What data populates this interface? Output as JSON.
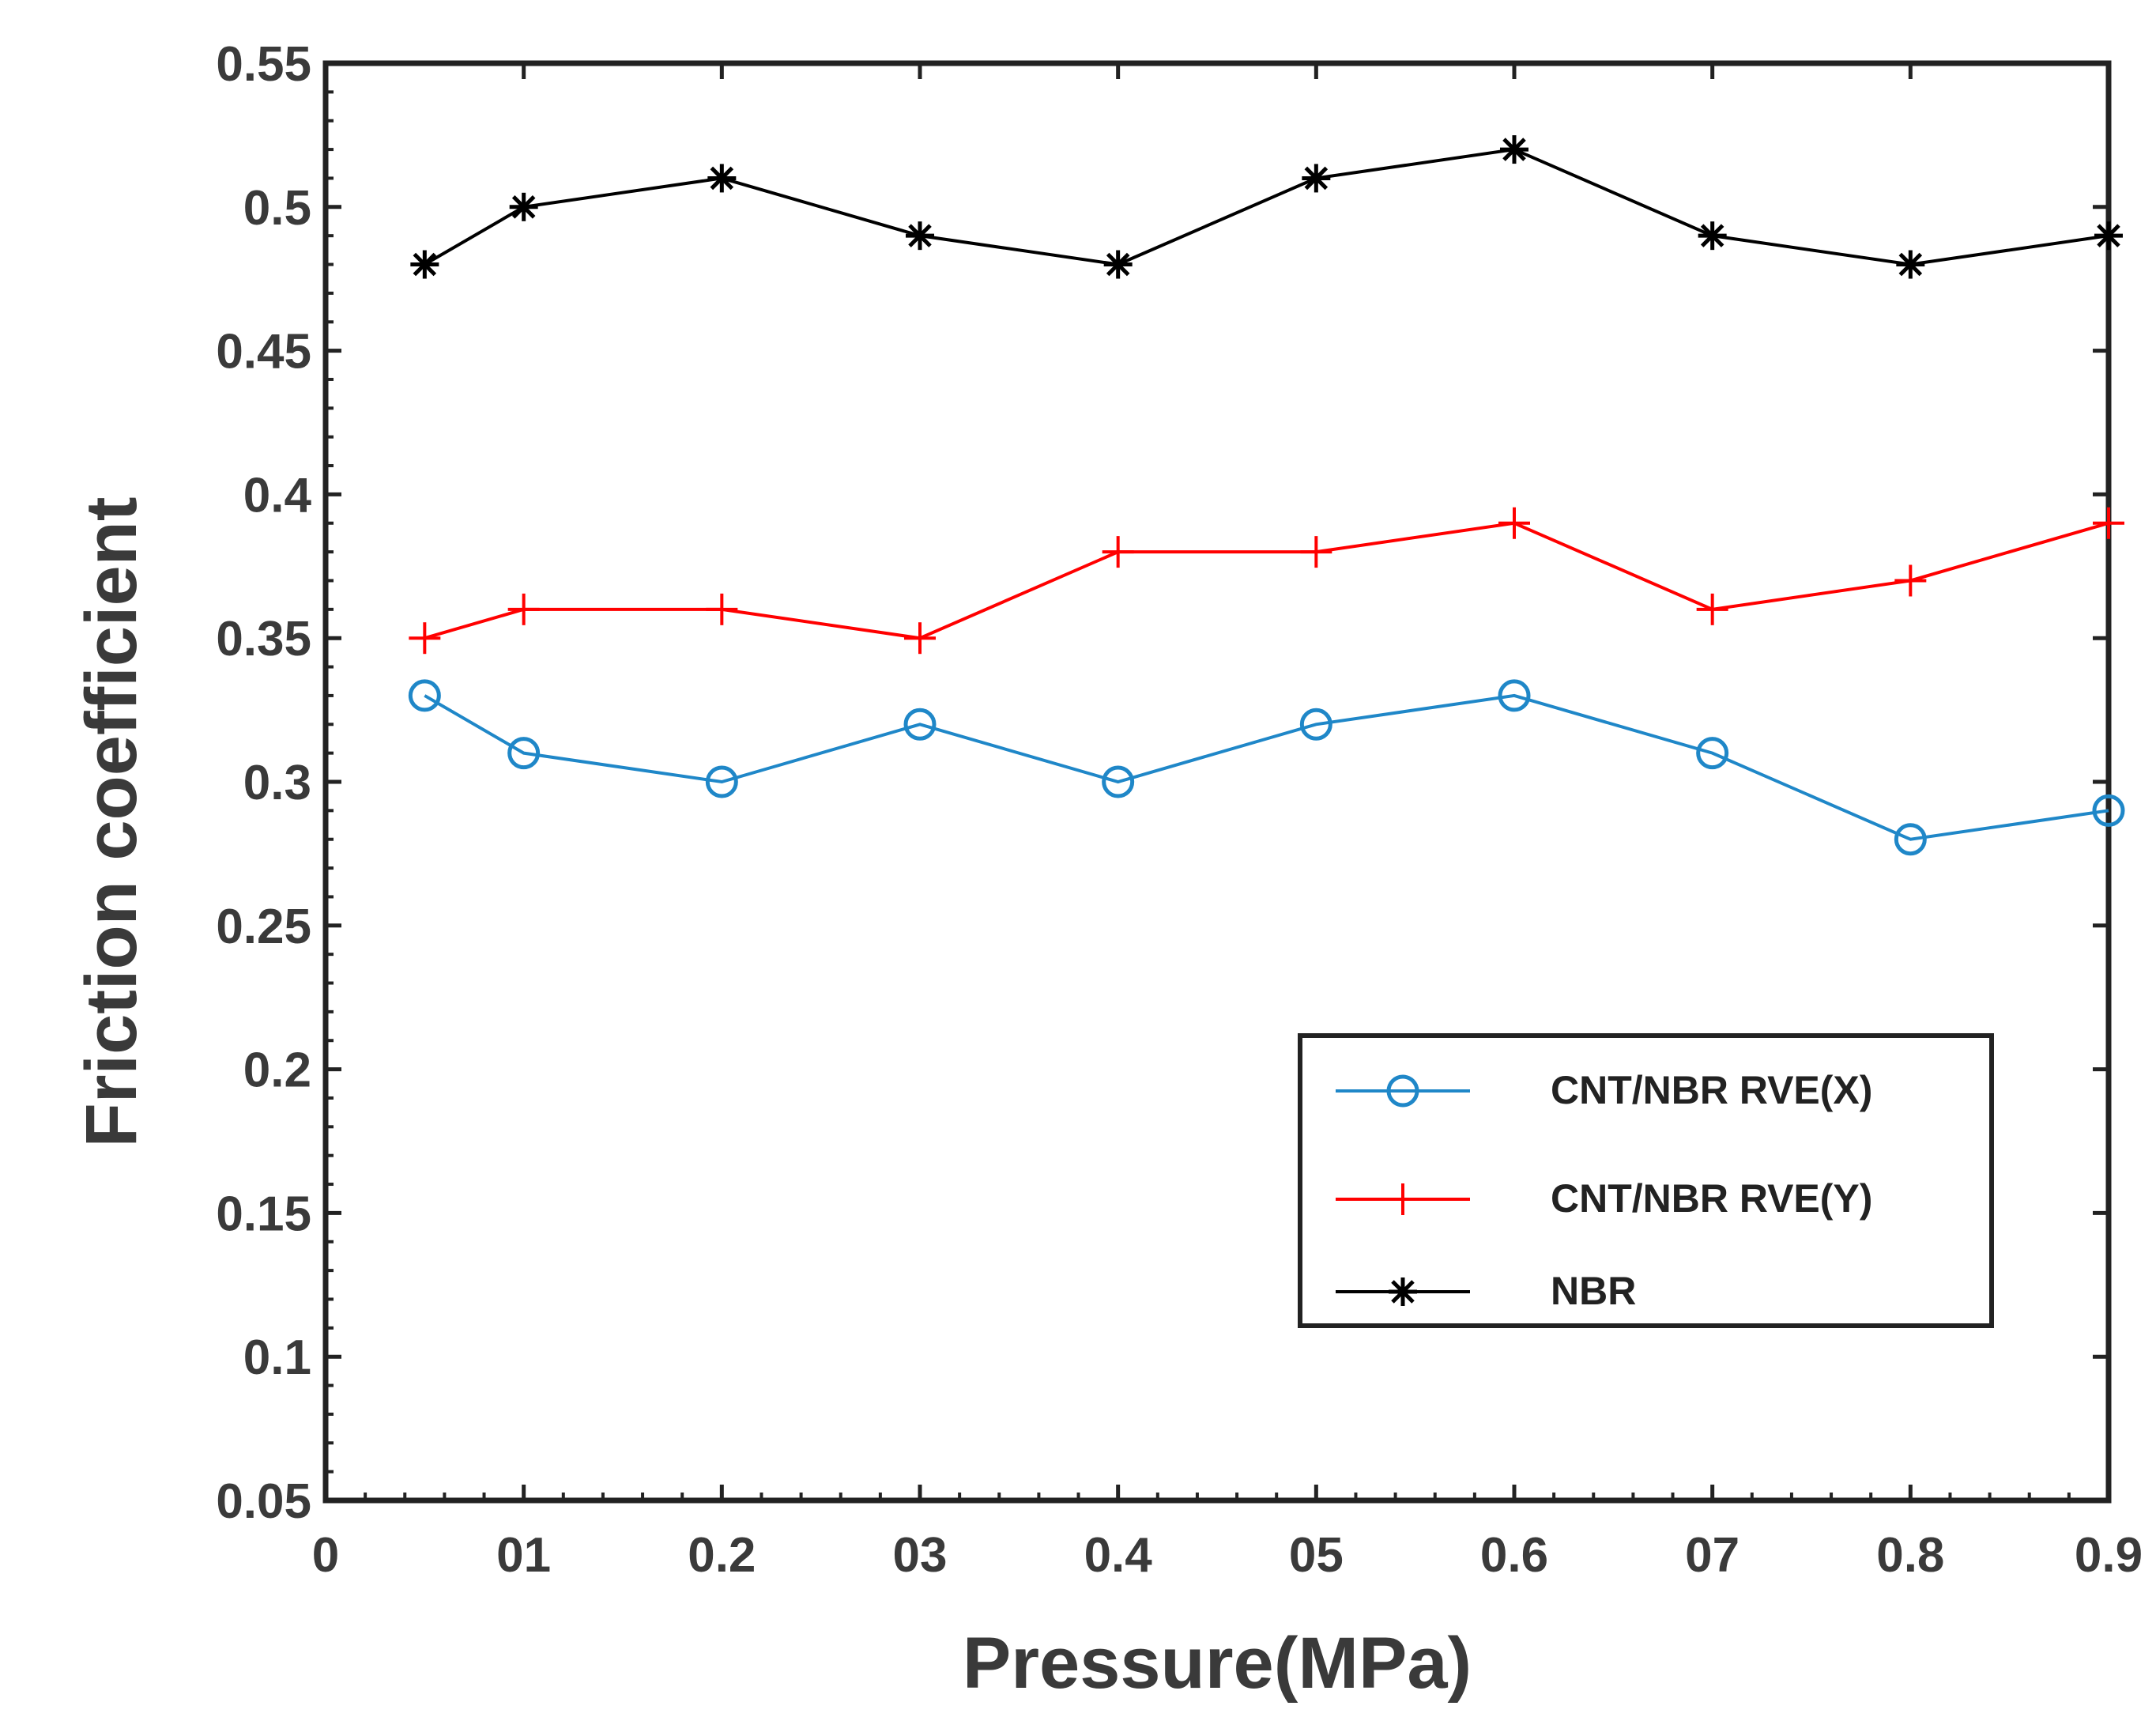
{
  "chart_data": {
    "type": "line",
    "xlabel": "Pressure(MPa)",
    "ylabel": "Friction coefficient",
    "xlim": [
      0,
      0.9
    ],
    "ylim": [
      0.05,
      0.55
    ],
    "x_tick_labels": [
      "0",
      "01",
      "0.2",
      "03",
      "0.4",
      "05",
      "0.6",
      "07",
      "0.8",
      "0.9"
    ],
    "y_tick_labels": [
      "0.05",
      "0.1",
      "0.15",
      "0.2",
      "0.25",
      "0.3",
      "0.35",
      "0.4",
      "0.45",
      "0.5",
      "0.55"
    ],
    "x": [
      0.05,
      0.1,
      0.2,
      0.3,
      0.4,
      0.5,
      0.6,
      0.7,
      0.8,
      0.9
    ],
    "series": [
      {
        "name": "CNT/NBR RVE(X)",
        "marker": "circle",
        "color": "#1f87c8",
        "values": [
          0.33,
          0.31,
          0.3,
          0.32,
          0.3,
          0.32,
          0.33,
          0.31,
          0.28,
          0.29
        ]
      },
      {
        "name": "CNT/NBR RVE(Y)",
        "marker": "plus",
        "color": "#ff0000",
        "values": [
          0.35,
          0.36,
          0.36,
          0.35,
          0.38,
          0.38,
          0.39,
          0.36,
          0.37,
          0.39
        ]
      },
      {
        "name": "NBR",
        "marker": "asterisk",
        "color": "#000000",
        "values": [
          0.48,
          0.5,
          0.51,
          0.49,
          0.48,
          0.51,
          0.52,
          0.49,
          0.48,
          0.49
        ]
      }
    ],
    "grid": false,
    "legend_position": "lower-right"
  }
}
